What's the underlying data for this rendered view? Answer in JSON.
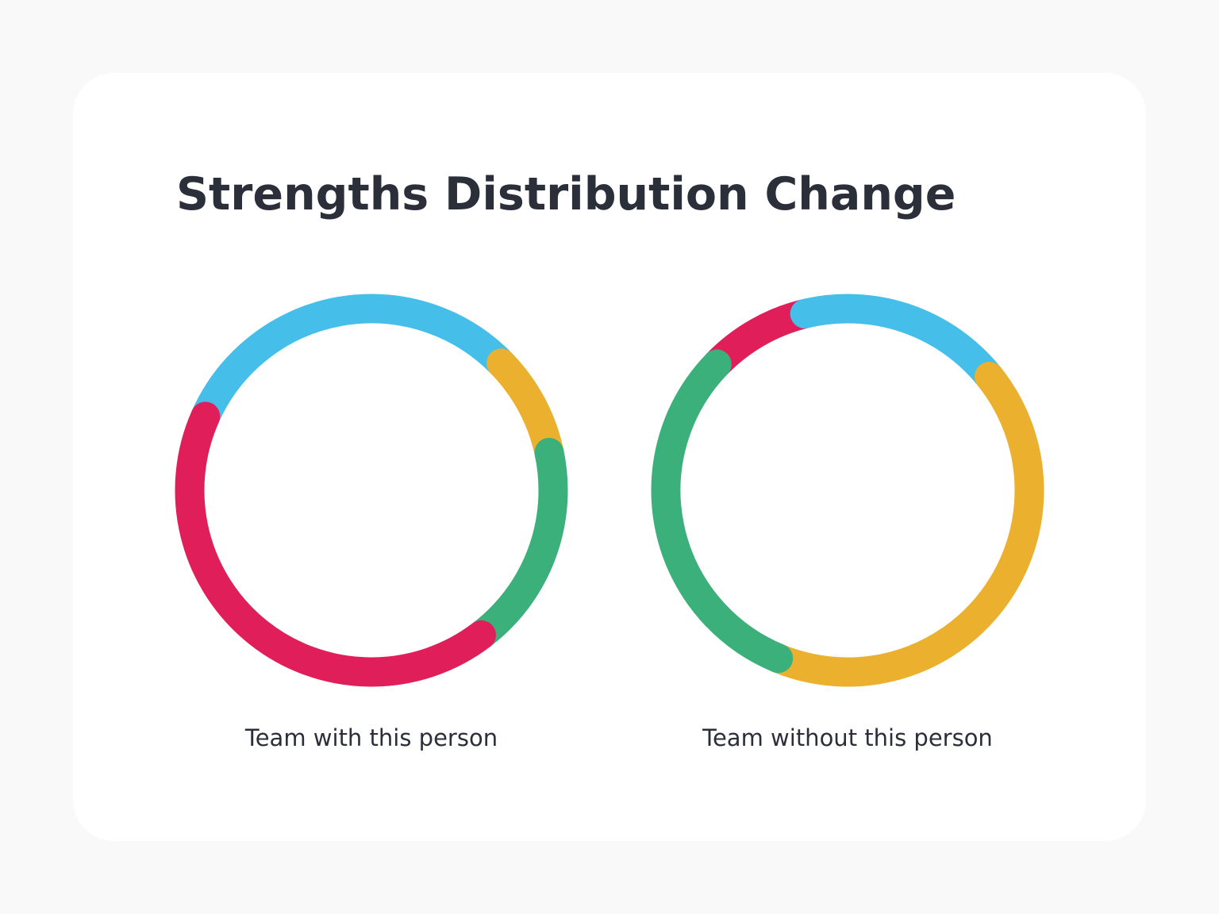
{
  "title": "Strengths Distribution Change",
  "chart_data": [
    {
      "type": "donut",
      "title": "Team with this person",
      "values": [
        31,
        9,
        18,
        42
      ],
      "colors": [
        "#45BFE9",
        "#EAB02E",
        "#3BB07A",
        "#E01E5A"
      ]
    },
    {
      "type": "donut",
      "title": "Team without this person",
      "values": [
        9,
        18,
        42,
        31
      ],
      "colors": [
        "#E01E5A",
        "#45BFE9",
        "#EAB02E",
        "#3BB07A"
      ]
    }
  ]
}
